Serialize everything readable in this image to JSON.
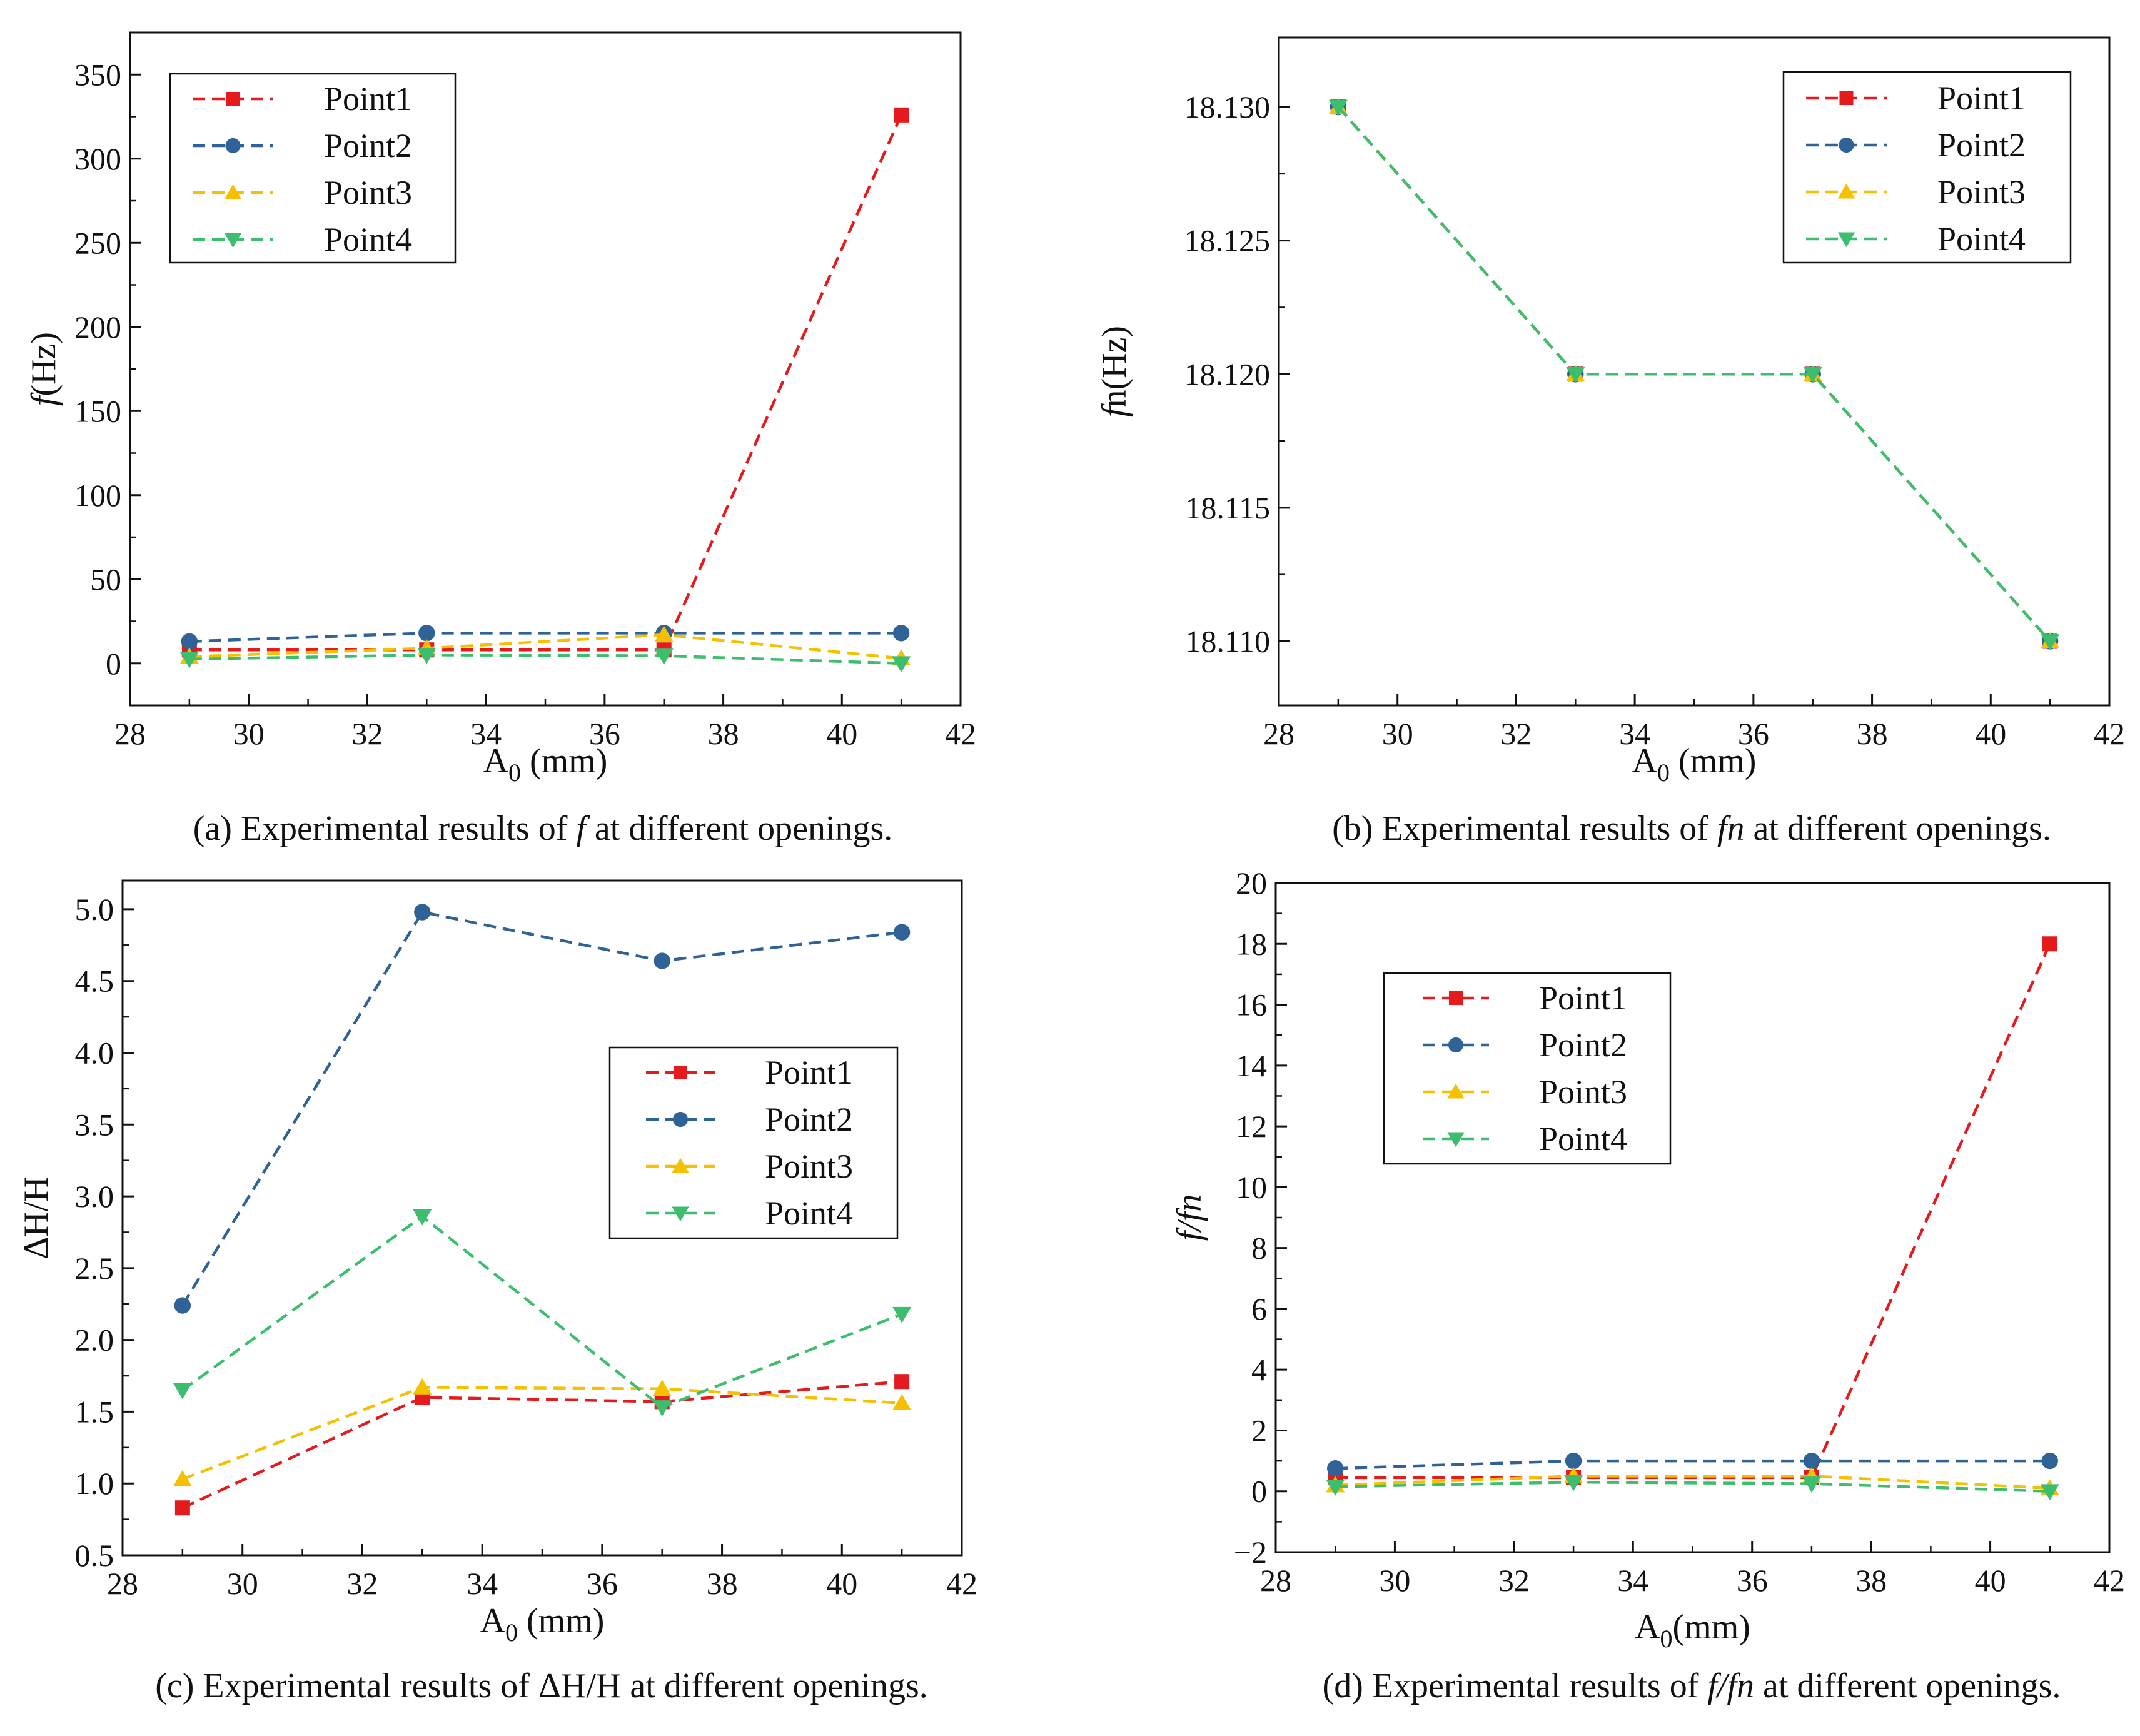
{
  "figure": {
    "colors": {
      "Point1": "#e41a1c",
      "Point2": "#2f6397",
      "Point3": "#f5c000",
      "Point4": "#3cbe6e"
    },
    "markers": {
      "Point1": "square",
      "Point2": "circle",
      "Point3": "triangle-up",
      "Point4": "triangle-down"
    }
  },
  "chart_data": [
    {
      "id": "a",
      "type": "line",
      "caption_parts": [
        "(a) Experimental results of ",
        "f",
        " at different openings."
      ],
      "ylabel_parts": [
        "f",
        "(Hz)"
      ],
      "xlabel_parts": [
        "A",
        "0",
        " (mm)"
      ],
      "x": [
        29,
        33,
        37,
        41
      ],
      "xlim": [
        28,
        42
      ],
      "xticks": [
        "28",
        "30",
        "32",
        "34",
        "36",
        "38",
        "40",
        "42"
      ],
      "ylim": [
        -25,
        375
      ],
      "yticks": [
        "0",
        "50",
        "100",
        "150",
        "200",
        "250",
        "300",
        "350"
      ],
      "legend_position": "top-left",
      "series": [
        {
          "name": "Point1",
          "values": [
            8,
            8,
            8,
            326
          ]
        },
        {
          "name": "Point2",
          "values": [
            13,
            18,
            18,
            18
          ]
        },
        {
          "name": "Point3",
          "values": [
            4,
            9,
            17,
            3
          ]
        },
        {
          "name": "Point4",
          "values": [
            2.5,
            5,
            4.5,
            0
          ]
        }
      ]
    },
    {
      "id": "b",
      "type": "line",
      "caption_parts": [
        "(b) Experimental results of ",
        "fn",
        " at different openings."
      ],
      "ylabel_parts": [
        "f",
        "n(Hz)"
      ],
      "xlabel_parts": [
        "A",
        "0",
        " (mm)"
      ],
      "x": [
        29,
        33,
        37,
        41
      ],
      "xlim": [
        28,
        42
      ],
      "xticks": [
        "28",
        "30",
        "32",
        "34",
        "36",
        "38",
        "40",
        "42"
      ],
      "ylim": [
        18.1076,
        18.1326
      ],
      "yticks": [
        "18.110",
        "18.115",
        "18.120",
        "18.125",
        "18.130"
      ],
      "legend_position": "top-right",
      "series": [
        {
          "name": "Point1",
          "values": [
            18.13,
            18.12,
            18.12,
            18.11
          ]
        },
        {
          "name": "Point2",
          "values": [
            18.13,
            18.12,
            18.12,
            18.11
          ]
        },
        {
          "name": "Point3",
          "values": [
            18.13,
            18.12,
            18.12,
            18.11
          ]
        },
        {
          "name": "Point4",
          "values": [
            18.13,
            18.12,
            18.12,
            18.11
          ]
        }
      ]
    },
    {
      "id": "c",
      "type": "line",
      "caption_parts": [
        "(c) Experimental results of  ΔH/H at different openings."
      ],
      "ylabel_parts": [
        "ΔH/H"
      ],
      "xlabel_parts": [
        "A",
        "0",
        " (mm)"
      ],
      "x": [
        29,
        33,
        37,
        41
      ],
      "xlim": [
        28,
        42
      ],
      "xticks": [
        "28",
        "30",
        "32",
        "34",
        "36",
        "38",
        "40",
        "42"
      ],
      "ylim": [
        0.5,
        5.2
      ],
      "yticks": [
        "0.5",
        "1.0",
        "1.5",
        "2.0",
        "2.5",
        "3.0",
        "3.5",
        "4.0",
        "4.5",
        "5.0"
      ],
      "legend_position": "middle-right",
      "series": [
        {
          "name": "Point1",
          "values": [
            0.83,
            1.6,
            1.57,
            1.71
          ]
        },
        {
          "name": "Point2",
          "values": [
            2.24,
            4.98,
            4.64,
            4.84
          ]
        },
        {
          "name": "Point3",
          "values": [
            1.03,
            1.67,
            1.66,
            1.56
          ]
        },
        {
          "name": "Point4",
          "values": [
            1.65,
            2.86,
            1.53,
            2.18
          ]
        }
      ]
    },
    {
      "id": "d",
      "type": "line",
      "caption_parts": [
        "(d) Experimental results of ",
        "f/fn",
        " at different openings."
      ],
      "ylabel_parts": [
        "f/fn"
      ],
      "xlabel_parts": [
        "A",
        "0",
        "(mm)"
      ],
      "x": [
        29,
        33,
        37,
        41
      ],
      "xlim": [
        28,
        42
      ],
      "xticks": [
        "28",
        "30",
        "32",
        "34",
        "36",
        "38",
        "40",
        "42"
      ],
      "ylim": [
        -2,
        20
      ],
      "yticks": [
        "−2",
        "0",
        "2",
        "4",
        "6",
        "8",
        "10",
        "12",
        "14",
        "16",
        "18",
        "20"
      ],
      "legend_position": "upper-left",
      "series": [
        {
          "name": "Point1",
          "values": [
            0.45,
            0.45,
            0.45,
            18
          ]
        },
        {
          "name": "Point2",
          "values": [
            0.75,
            1.0,
            1.0,
            1.0
          ]
        },
        {
          "name": "Point3",
          "values": [
            0.2,
            0.5,
            0.5,
            0.1
          ]
        },
        {
          "name": "Point4",
          "values": [
            0.15,
            0.3,
            0.25,
            0.0
          ]
        }
      ]
    }
  ]
}
